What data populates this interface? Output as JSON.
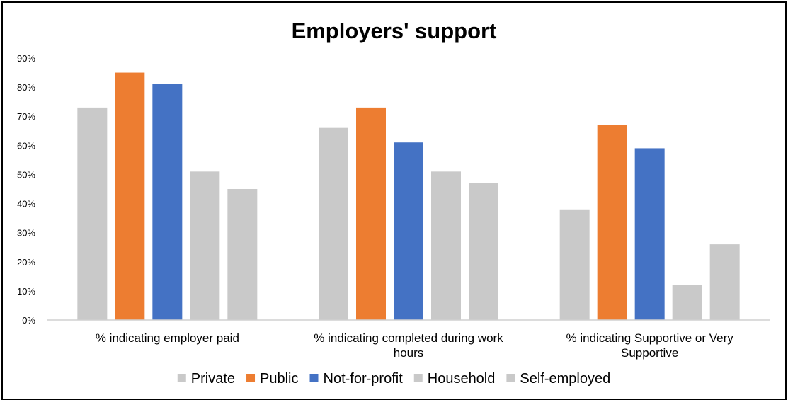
{
  "chart_data": {
    "type": "bar",
    "title": "Employers' support",
    "xlabel": "",
    "ylabel": "",
    "ylim": [
      0,
      90
    ],
    "yticks": [
      "0%",
      "10%",
      "20%",
      "30%",
      "40%",
      "50%",
      "60%",
      "70%",
      "80%",
      "90%"
    ],
    "grid": false,
    "legend": "bottom",
    "categories": [
      [
        "% indicating employer paid"
      ],
      [
        "% indicating completed during work",
        "hours"
      ],
      [
        "% indicating Supportive or Very",
        "Supportive"
      ]
    ],
    "series": [
      {
        "name": "Private",
        "color": "#c9c9c9",
        "values": [
          73,
          66,
          38
        ]
      },
      {
        "name": "Public",
        "color": "#ed7d31",
        "values": [
          85,
          73,
          67
        ]
      },
      {
        "name": "Not-for-profit",
        "color": "#4472c4",
        "values": [
          81,
          61,
          59
        ]
      },
      {
        "name": "Household",
        "color": "#c9c9c9",
        "values": [
          51,
          51,
          12
        ]
      },
      {
        "name": "Self-employed",
        "color": "#c9c9c9",
        "values": [
          45,
          47,
          26
        ]
      }
    ]
  }
}
